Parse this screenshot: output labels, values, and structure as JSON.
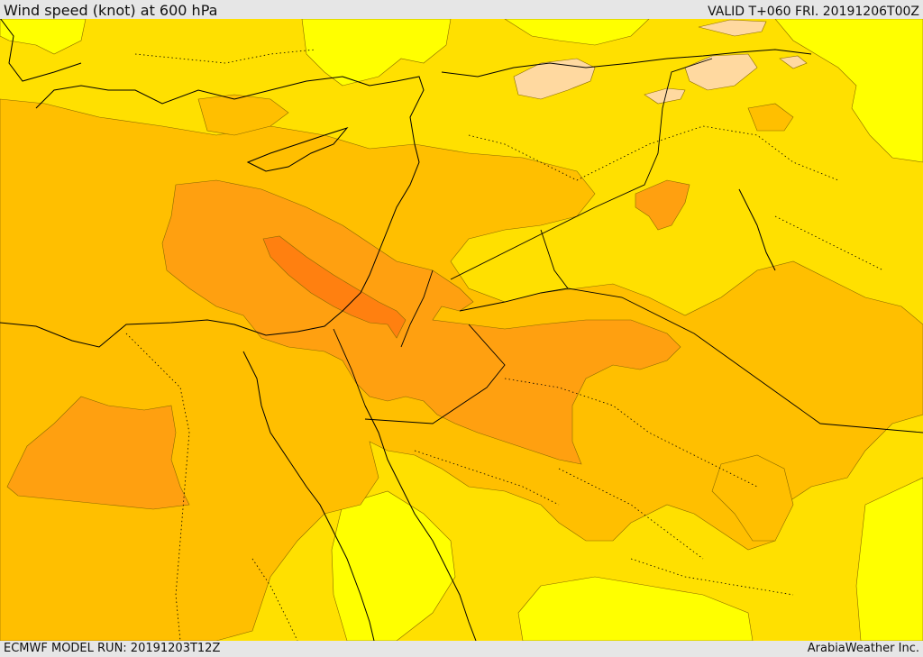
{
  "header": {
    "title": "Wind speed (knot) at 600 hPa",
    "valid": "VALID T+060 FRI. 20191206T00Z"
  },
  "footer": {
    "model_run": "ECMWF MODEL RUN: 20191203T12Z",
    "credit": "ArabiaWeather Inc."
  },
  "colors": {
    "band_lightest": "#ffff00",
    "band_light": "#ffe000",
    "band_mid": "#ffbf00",
    "band_orange": "#ffa010",
    "band_strong": "#ff8010",
    "band_calm": "#ffd9a0"
  }
}
